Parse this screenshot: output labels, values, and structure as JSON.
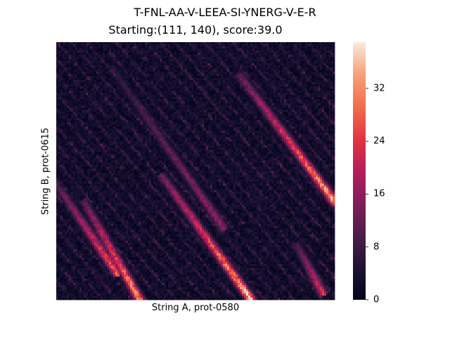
{
  "chart_data": {
    "type": "heatmap",
    "suptitle": "T-FNL-AA-V-LEEA-SI-YNERG-V-E-R",
    "title": "Starting:(111, 140), score:39.0",
    "xlabel": "String A, prot-0580",
    "ylabel": "String B, prot-0615",
    "colormap": "rocket",
    "colorbar": {
      "min": 0,
      "max": 39,
      "ticks": [
        0,
        8,
        16,
        24,
        32
      ]
    },
    "grid": false,
    "description_of_pattern": "diagonal bands of high alignment scores running from upper-left to lower-right",
    "bands": [
      {
        "x_start": 0.1,
        "y_start": 0.62,
        "x_end": 0.3,
        "y_end": 1.0,
        "peak": 36
      },
      {
        "x_start": 0.38,
        "y_start": 0.52,
        "x_end": 0.7,
        "y_end": 1.0,
        "peak": 39
      },
      {
        "x_start": 0.66,
        "y_start": 0.13,
        "x_end": 1.0,
        "y_end": 0.62,
        "peak": 37
      },
      {
        "x_start": 0.0,
        "y_start": 0.55,
        "x_end": 0.22,
        "y_end": 0.9,
        "peak": 30
      },
      {
        "x_start": 0.2,
        "y_start": 0.1,
        "x_end": 0.6,
        "y_end": 0.72,
        "peak": 18
      },
      {
        "x_start": 0.86,
        "y_start": 0.78,
        "x_end": 0.96,
        "y_end": 0.98,
        "peak": 26
      }
    ]
  }
}
